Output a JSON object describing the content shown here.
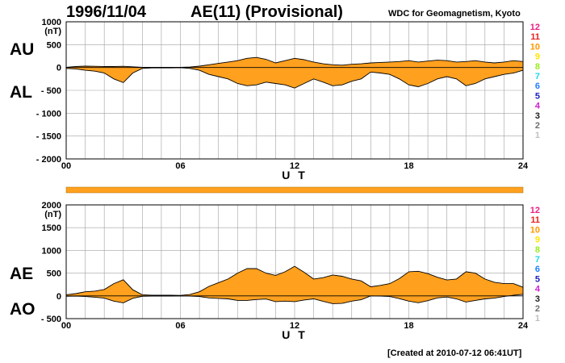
{
  "header": {
    "date": "1996/11/04",
    "title": "AE(11) (Provisional)",
    "organization": "WDC for Geomagnetism, Kyoto"
  },
  "panel_labels": {
    "au": "AU",
    "al": "AL",
    "ae": "AE",
    "ao": "AO"
  },
  "legend_levels": [
    {
      "label": "12",
      "color": "#e8208a"
    },
    {
      "label": "11",
      "color": "#e82020"
    },
    {
      "label": "10",
      "color": "#ff9a00"
    },
    {
      "label": "9",
      "color": "#ffe600"
    },
    {
      "label": "8",
      "color": "#9aee20"
    },
    {
      "label": "7",
      "color": "#20d8e8"
    },
    {
      "label": "6",
      "color": "#2080ff"
    },
    {
      "label": "5",
      "color": "#2020c0"
    },
    {
      "label": "4",
      "color": "#d020d0"
    },
    {
      "label": "3",
      "color": "#202020"
    },
    {
      "label": "2",
      "color": "#707070"
    },
    {
      "label": "1",
      "color": "#c0c0c0"
    }
  ],
  "colors": {
    "fill": "#ffa01e",
    "line": "#000000",
    "grid": "#a0a0a0",
    "bar": "#ffa01e"
  },
  "footer": "[Created at 2010-07-12 06:41UT]",
  "chart_data": [
    {
      "type": "area",
      "panel": "AU/AL",
      "xlabel": "U T",
      "ylabel": "(nT)",
      "xlim": [
        0,
        24
      ],
      "ylim": [
        -2000,
        1000
      ],
      "x_ticks": [
        "00",
        "06",
        "12",
        "18",
        "24"
      ],
      "y_ticks": [
        "1000",
        "500",
        "0",
        "- 500",
        "- 1000",
        "- 1500",
        "- 2000"
      ],
      "x": [
        0,
        0.5,
        1,
        1.5,
        2,
        2.5,
        3,
        3.5,
        4,
        4.5,
        5,
        5.5,
        6,
        6.5,
        7,
        7.5,
        8,
        8.5,
        9,
        9.5,
        10,
        10.5,
        11,
        11.5,
        12,
        12.5,
        13,
        13.5,
        14,
        14.5,
        15,
        15.5,
        16,
        16.5,
        17,
        17.5,
        18,
        18.5,
        19,
        19.5,
        20,
        20.5,
        21,
        21.5,
        22,
        22.5,
        23,
        23.5,
        24
      ],
      "series": [
        {
          "name": "AU",
          "values": [
            5,
            20,
            30,
            25,
            20,
            20,
            25,
            15,
            5,
            5,
            5,
            5,
            5,
            10,
            30,
            60,
            90,
            120,
            150,
            200,
            220,
            180,
            100,
            150,
            200,
            170,
            120,
            80,
            60,
            50,
            70,
            80,
            100,
            110,
            120,
            130,
            150,
            120,
            140,
            160,
            150,
            120,
            130,
            150,
            120,
            100,
            120,
            150,
            130
          ]
        },
        {
          "name": "AL",
          "values": [
            -20,
            -30,
            -60,
            -80,
            -120,
            -250,
            -330,
            -120,
            -20,
            -10,
            -10,
            -10,
            -5,
            -20,
            -60,
            -150,
            -200,
            -250,
            -350,
            -400,
            -380,
            -320,
            -350,
            -380,
            -450,
            -350,
            -250,
            -320,
            -400,
            -380,
            -300,
            -250,
            -100,
            -120,
            -150,
            -250,
            -380,
            -420,
            -350,
            -250,
            -200,
            -250,
            -400,
            -350,
            -250,
            -200,
            -150,
            -120,
            -60
          ]
        }
      ]
    },
    {
      "type": "area",
      "panel": "AE/AO",
      "xlabel": "U T",
      "ylabel": "(nT)",
      "xlim": [
        0,
        24
      ],
      "ylim": [
        -500,
        2000
      ],
      "x_ticks": [
        "00",
        "06",
        "12",
        "18",
        "24"
      ],
      "y_ticks": [
        "2000",
        "1500",
        "1000",
        "500",
        "0",
        "- 500"
      ],
      "x": [
        0,
        0.5,
        1,
        1.5,
        2,
        2.5,
        3,
        3.5,
        4,
        4.5,
        5,
        5.5,
        6,
        6.5,
        7,
        7.5,
        8,
        8.5,
        9,
        9.5,
        10,
        10.5,
        11,
        11.5,
        12,
        12.5,
        13,
        13.5,
        14,
        14.5,
        15,
        15.5,
        16,
        16.5,
        17,
        17.5,
        18,
        18.5,
        19,
        19.5,
        20,
        20.5,
        21,
        21.5,
        22,
        22.5,
        23,
        23.5,
        24
      ],
      "series": [
        {
          "name": "AE",
          "values": [
            25,
            50,
            90,
            105,
            140,
            270,
            355,
            135,
            25,
            15,
            15,
            15,
            10,
            30,
            90,
            210,
            290,
            370,
            500,
            600,
            600,
            500,
            450,
            530,
            650,
            520,
            370,
            400,
            460,
            430,
            370,
            330,
            200,
            230,
            270,
            380,
            530,
            540,
            490,
            410,
            350,
            370,
            530,
            500,
            370,
            300,
            270,
            270,
            190
          ]
        },
        {
          "name": "AO",
          "values": [
            -8,
            -5,
            -15,
            -28,
            -50,
            -115,
            -153,
            -53,
            -8,
            -3,
            -3,
            -3,
            0,
            -5,
            -15,
            -45,
            -55,
            -65,
            -100,
            -100,
            -80,
            -70,
            -125,
            -115,
            -125,
            -90,
            -65,
            -120,
            -170,
            -165,
            -115,
            -85,
            0,
            -5,
            -15,
            -60,
            -115,
            -150,
            -105,
            -45,
            -25,
            -65,
            -135,
            -100,
            -65,
            -50,
            -15,
            15,
            35
          ]
        }
      ]
    }
  ]
}
